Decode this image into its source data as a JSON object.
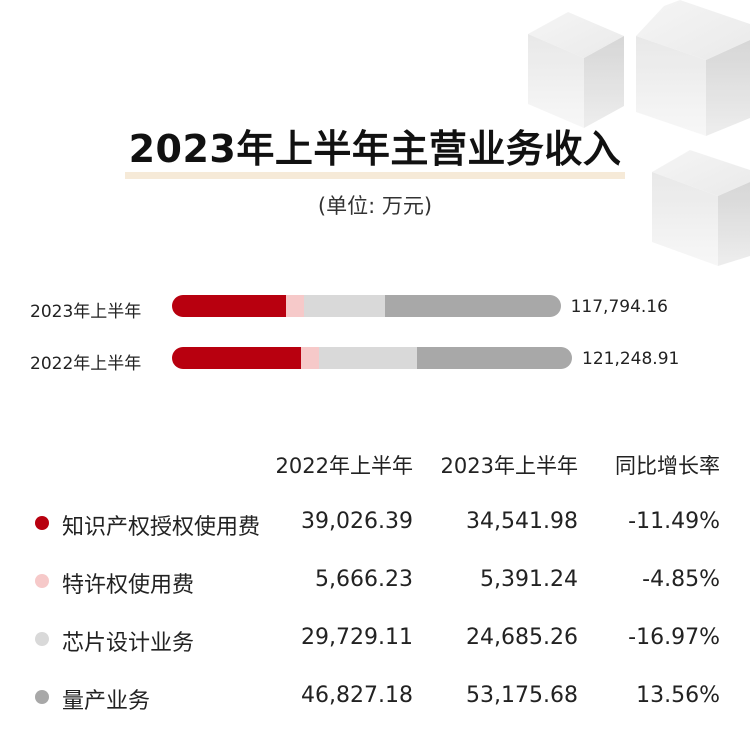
{
  "title": "2023年上半年主营业务收入",
  "unit": "(单位: 万元)",
  "colors": {
    "ip_license": "#b8000f",
    "license": "#f6c9c9",
    "chip_design": "#d9d9d9",
    "mass_production": "#a8a8a8"
  },
  "chart_data": {
    "type": "bar",
    "orientation": "horizontal-stacked",
    "categories": [
      "2023年上半年",
      "2022年上半年"
    ],
    "series": [
      {
        "name": "知识产权授权使用费",
        "values": [
          34541.98,
          39026.39
        ]
      },
      {
        "name": "特许权使用费",
        "values": [
          5391.24,
          5666.23
        ]
      },
      {
        "name": "芯片设计业务",
        "values": [
          24685.26,
          29729.11
        ]
      },
      {
        "name": "量产业务",
        "values": [
          53175.68,
          46827.18
        ]
      }
    ],
    "totals": [
      "117,794.16",
      "121,248.91"
    ]
  },
  "table": {
    "headers": [
      "2022年上半年",
      "2023年上半年",
      "同比增长率"
    ],
    "rows": [
      {
        "label": "知识产权授权使用费",
        "v2022": "39,026.39",
        "v2023": "34,541.98",
        "growth": "-11.49%"
      },
      {
        "label": "特许权使用费",
        "v2022": "5,666.23",
        "v2023": "5,391.24",
        "growth": "-4.85%"
      },
      {
        "label": "芯片设计业务",
        "v2022": "29,729.11",
        "v2023": "24,685.26",
        "growth": "-16.97%"
      },
      {
        "label": "量产业务",
        "v2022": "46,827.18",
        "v2023": "53,175.68",
        "growth": "13.56%"
      }
    ]
  }
}
